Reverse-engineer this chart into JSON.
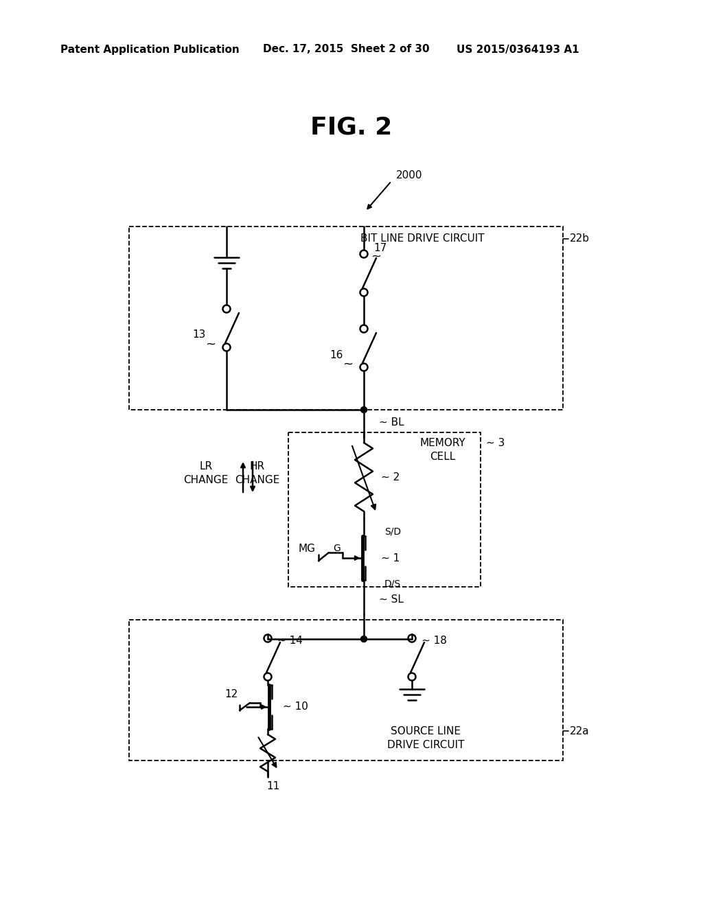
{
  "title": "FIG. 2",
  "header_left": "Patent Application Publication",
  "header_mid": "Dec. 17, 2015  Sheet 2 of 30",
  "header_right": "US 2015/0364193 A1",
  "bg_color": "#ffffff",
  "line_color": "#000000",
  "label_2000": "2000",
  "label_22b": "22b",
  "label_22a": "22a",
  "label_bit": "BIT LINE DRIVE CIRCUIT",
  "label_mem": "MEMORY\nCELL",
  "label_src": "SOURCE LINE\nDRIVE CIRCUIT",
  "label_bl": "~ BL",
  "label_sl": "~ SL",
  "label_lr": "LR\nCHANGE",
  "label_hr": "HR\nCHANGE",
  "label_mg": "MG",
  "label_g": "G",
  "label_sd": "S/D",
  "label_ds": "D/S"
}
